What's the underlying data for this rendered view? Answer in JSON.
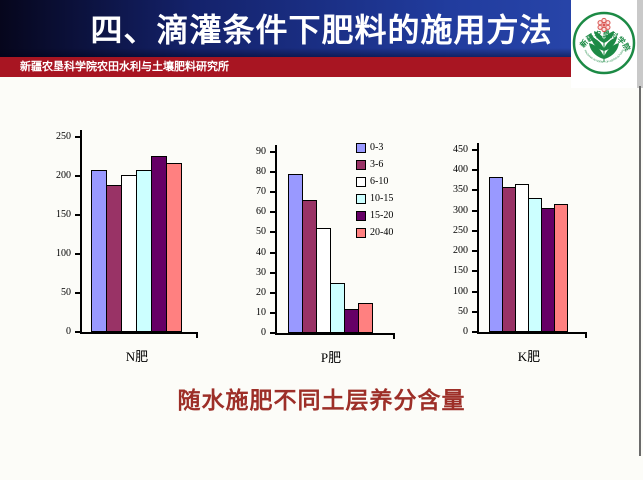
{
  "slide": {
    "background": "#fcfcf8"
  },
  "header": {
    "title": "四、滴灌条件下肥料的施用方法",
    "text_color": "#ffffff",
    "bg_gradient_left": "#06061c",
    "bg_gradient_right": "#2b49ae"
  },
  "institution_bar": {
    "text": "新疆农垦科学院农田水利与土壤肥料研究所",
    "bg_color": "#a81522",
    "text_color": "#ffffff"
  },
  "logo": {
    "ring_text_top": "新疆农垦科学院",
    "ring_text_bottom": "XINJIANG ACADEMY OF AGRICULTURAL AND RECLAMATION SCIENCE",
    "ring_color": "#1c8a45",
    "flower_color": "#d9534f"
  },
  "caption": {
    "text": "随水施肥不同土层养分含量",
    "color": "#9d2f28"
  },
  "legend": {
    "position": "top-right-of-middle-chart",
    "items": [
      {
        "label": "0-3",
        "color": "#9999ff"
      },
      {
        "label": "3-6",
        "color": "#993366"
      },
      {
        "label": "6-10",
        "color": "#ffffff"
      },
      {
        "label": "10-15",
        "color": "#ccffff"
      },
      {
        "label": "15-20",
        "color": "#660066"
      },
      {
        "label": "20-40",
        "color": "#ff8080"
      }
    ]
  },
  "chart_data": [
    {
      "type": "bar",
      "title": "N肥",
      "categories": [
        "0-3",
        "3-6",
        "6-10",
        "10-15",
        "15-20",
        "20-40"
      ],
      "values": [
        208,
        188,
        201,
        208,
        226,
        217
      ],
      "xlabel": "N肥",
      "ylabel": "",
      "ylim": [
        0,
        250
      ],
      "ytick_step": 50,
      "grid": false,
      "bar_border_color": "#000000"
    },
    {
      "type": "bar",
      "title": "P肥",
      "categories": [
        "0-3",
        "3-6",
        "6-10",
        "10-15",
        "15-20",
        "20-40"
      ],
      "values": [
        79,
        66,
        52,
        25,
        12,
        15
      ],
      "xlabel": "P肥",
      "ylabel": "",
      "ylim": [
        0,
        90
      ],
      "ytick_step": 10,
      "grid": false,
      "bar_border_color": "#000000"
    },
    {
      "type": "bar",
      "title": "K肥",
      "categories": [
        "0-3",
        "3-6",
        "6-10",
        "10-15",
        "15-20",
        "20-40"
      ],
      "values": [
        383,
        358,
        365,
        332,
        307,
        316
      ],
      "xlabel": "K肥",
      "ylabel": "",
      "ylim": [
        0,
        450
      ],
      "ytick_step": 50,
      "grid": false,
      "bar_border_color": "#000000"
    }
  ]
}
